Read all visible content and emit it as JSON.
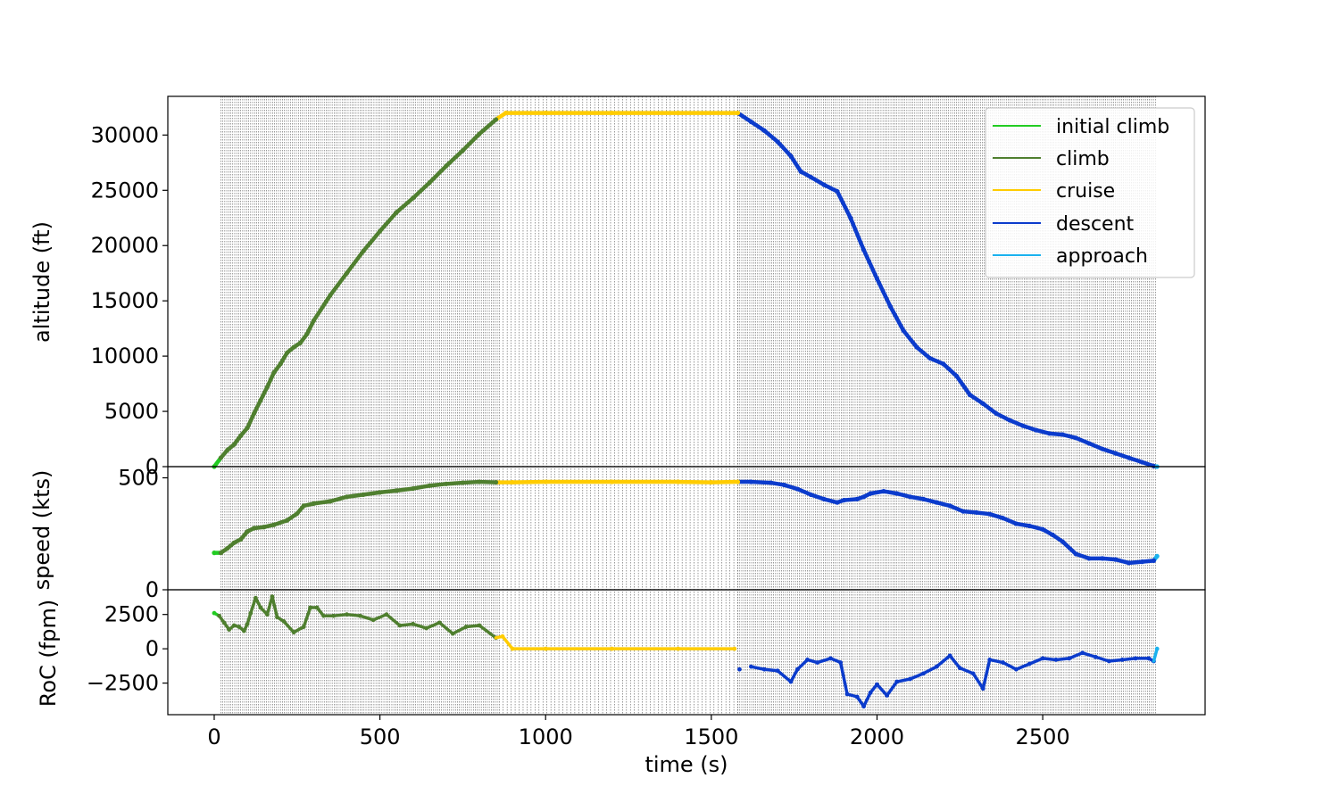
{
  "chart_data": {
    "type": "line",
    "xlabel": "time (s)",
    "xlim": [
      -140,
      2990
    ],
    "xticks": [
      0,
      500,
      1000,
      1500,
      2000,
      2500
    ],
    "legend": {
      "placement": "top-right",
      "entries": [
        {
          "name": "initial climb",
          "color": "#22cc22"
        },
        {
          "name": "climb",
          "color": "#4f7f2f"
        },
        {
          "name": "cruise",
          "color": "#ffcc00"
        },
        {
          "name": "descent",
          "color": "#0b3bcc"
        },
        {
          "name": "approach",
          "color": "#1ab2ee"
        }
      ]
    },
    "segments": [
      {
        "phase": "initial climb",
        "start": 0,
        "end": 12
      },
      {
        "phase": "climb",
        "start": 12,
        "end": 850
      },
      {
        "phase": "cruise",
        "start": 850,
        "end": 1580
      },
      {
        "phase": "descent",
        "start": 1580,
        "end": 2835
      },
      {
        "phase": "approach",
        "start": 2835,
        "end": 2845
      }
    ],
    "vlines": {
      "style": "dotted",
      "color": "#555555",
      "spans": [
        [
          20,
          860,
          6
        ],
        [
          860,
          1580,
          12
        ],
        [
          1580,
          2845,
          6
        ]
      ]
    },
    "panels": [
      {
        "name": "altitude",
        "ylabel": "altitude (ft)",
        "ylim": [
          0,
          33500
        ],
        "yticks": [
          0,
          5000,
          10000,
          15000,
          20000,
          25000,
          30000
        ],
        "style": "line",
        "points": [
          [
            0,
            0
          ],
          [
            20,
            800
          ],
          [
            40,
            1500
          ],
          [
            60,
            2000
          ],
          [
            80,
            2800
          ],
          [
            100,
            3500
          ],
          [
            120,
            4800
          ],
          [
            140,
            6000
          ],
          [
            160,
            7200
          ],
          [
            180,
            8500
          ],
          [
            200,
            9300
          ],
          [
            220,
            10300
          ],
          [
            240,
            10800
          ],
          [
            260,
            11200
          ],
          [
            280,
            12000
          ],
          [
            300,
            13200
          ],
          [
            350,
            15500
          ],
          [
            400,
            17500
          ],
          [
            450,
            19500
          ],
          [
            500,
            21300
          ],
          [
            550,
            23000
          ],
          [
            600,
            24300
          ],
          [
            650,
            25700
          ],
          [
            700,
            27200
          ],
          [
            750,
            28600
          ],
          [
            800,
            30100
          ],
          [
            850,
            31400
          ],
          [
            880,
            32000
          ],
          [
            1000,
            32000
          ],
          [
            1200,
            32000
          ],
          [
            1400,
            32000
          ],
          [
            1580,
            32000
          ],
          [
            1620,
            31200
          ],
          [
            1660,
            30400
          ],
          [
            1700,
            29400
          ],
          [
            1740,
            28100
          ],
          [
            1770,
            26700
          ],
          [
            1800,
            26200
          ],
          [
            1840,
            25500
          ],
          [
            1880,
            24900
          ],
          [
            1920,
            22500
          ],
          [
            1960,
            19600
          ],
          [
            2000,
            17000
          ],
          [
            2040,
            14500
          ],
          [
            2080,
            12300
          ],
          [
            2120,
            10800
          ],
          [
            2160,
            9800
          ],
          [
            2200,
            9300
          ],
          [
            2240,
            8200
          ],
          [
            2280,
            6500
          ],
          [
            2320,
            5700
          ],
          [
            2360,
            4800
          ],
          [
            2400,
            4200
          ],
          [
            2440,
            3700
          ],
          [
            2480,
            3300
          ],
          [
            2520,
            3000
          ],
          [
            2560,
            2900
          ],
          [
            2600,
            2600
          ],
          [
            2640,
            2100
          ],
          [
            2680,
            1600
          ],
          [
            2720,
            1200
          ],
          [
            2760,
            800
          ],
          [
            2800,
            400
          ],
          [
            2835,
            50
          ],
          [
            2845,
            0
          ]
        ]
      },
      {
        "name": "speed",
        "ylabel": "speed (kts)",
        "ylim": [
          0,
          550
        ],
        "yticks": [
          0,
          500
        ],
        "style": "line",
        "points": [
          [
            0,
            165
          ],
          [
            20,
            165
          ],
          [
            40,
            185
          ],
          [
            60,
            210
          ],
          [
            80,
            225
          ],
          [
            100,
            260
          ],
          [
            120,
            275
          ],
          [
            150,
            280
          ],
          [
            180,
            290
          ],
          [
            220,
            310
          ],
          [
            250,
            340
          ],
          [
            270,
            375
          ],
          [
            300,
            385
          ],
          [
            350,
            395
          ],
          [
            400,
            415
          ],
          [
            450,
            425
          ],
          [
            500,
            435
          ],
          [
            550,
            443
          ],
          [
            600,
            452
          ],
          [
            650,
            465
          ],
          [
            700,
            473
          ],
          [
            750,
            478
          ],
          [
            800,
            482
          ],
          [
            850,
            480
          ],
          [
            900,
            480
          ],
          [
            1000,
            482
          ],
          [
            1200,
            482
          ],
          [
            1400,
            482
          ],
          [
            1500,
            480
          ],
          [
            1580,
            482
          ],
          [
            1620,
            482
          ],
          [
            1680,
            478
          ],
          [
            1720,
            468
          ],
          [
            1760,
            450
          ],
          [
            1800,
            425
          ],
          [
            1840,
            405
          ],
          [
            1880,
            390
          ],
          [
            1900,
            400
          ],
          [
            1940,
            405
          ],
          [
            1960,
            415
          ],
          [
            1980,
            430
          ],
          [
            2020,
            440
          ],
          [
            2060,
            430
          ],
          [
            2100,
            415
          ],
          [
            2140,
            405
          ],
          [
            2180,
            390
          ],
          [
            2220,
            375
          ],
          [
            2260,
            350
          ],
          [
            2300,
            345
          ],
          [
            2340,
            338
          ],
          [
            2380,
            320
          ],
          [
            2420,
            295
          ],
          [
            2460,
            285
          ],
          [
            2500,
            270
          ],
          [
            2530,
            245
          ],
          [
            2560,
            215
          ],
          [
            2600,
            160
          ],
          [
            2640,
            140
          ],
          [
            2680,
            140
          ],
          [
            2720,
            135
          ],
          [
            2760,
            120
          ],
          [
            2800,
            125
          ],
          [
            2835,
            130
          ],
          [
            2845,
            150
          ]
        ]
      },
      {
        "name": "roc",
        "ylabel": "RoC (fpm)",
        "ylim": [
          -4800,
          4300
        ],
        "yticks": [
          -2500,
          0,
          2500
        ],
        "style": "dots",
        "points": [
          [
            0,
            2600
          ],
          [
            15,
            2400
          ],
          [
            30,
            1900
          ],
          [
            45,
            1400
          ],
          [
            60,
            1700
          ],
          [
            75,
            1600
          ],
          [
            90,
            1300
          ],
          [
            100,
            1800
          ],
          [
            110,
            2600
          ],
          [
            125,
            3700
          ],
          [
            140,
            3000
          ],
          [
            160,
            2500
          ],
          [
            175,
            3800
          ],
          [
            190,
            2300
          ],
          [
            210,
            2000
          ],
          [
            240,
            1200
          ],
          [
            270,
            1600
          ],
          [
            290,
            3000
          ],
          [
            310,
            3000
          ],
          [
            330,
            2400
          ],
          [
            360,
            2400
          ],
          [
            400,
            2500
          ],
          [
            440,
            2400
          ],
          [
            480,
            2100
          ],
          [
            520,
            2500
          ],
          [
            560,
            1700
          ],
          [
            600,
            1800
          ],
          [
            640,
            1500
          ],
          [
            680,
            1900
          ],
          [
            720,
            1100
          ],
          [
            760,
            1600
          ],
          [
            800,
            1700
          ],
          [
            850,
            800
          ],
          [
            870,
            900
          ],
          [
            900,
            0
          ],
          [
            1000,
            0
          ],
          [
            1200,
            0
          ],
          [
            1400,
            0
          ],
          [
            1570,
            0
          ],
          [
            1585,
            -1500
          ],
          [
            1620,
            -1300
          ],
          [
            1660,
            -1500
          ],
          [
            1700,
            -1600
          ],
          [
            1740,
            -2400
          ],
          [
            1760,
            -1500
          ],
          [
            1790,
            -800
          ],
          [
            1820,
            -1000
          ],
          [
            1860,
            -700
          ],
          [
            1890,
            -1000
          ],
          [
            1910,
            -3300
          ],
          [
            1940,
            -3500
          ],
          [
            1960,
            -4200
          ],
          [
            1980,
            -3200
          ],
          [
            2000,
            -2600
          ],
          [
            2030,
            -3400
          ],
          [
            2060,
            -2400
          ],
          [
            2100,
            -2200
          ],
          [
            2140,
            -1800
          ],
          [
            2180,
            -1300
          ],
          [
            2220,
            -500
          ],
          [
            2250,
            -1400
          ],
          [
            2290,
            -1800
          ],
          [
            2320,
            -2900
          ],
          [
            2340,
            -800
          ],
          [
            2380,
            -1000
          ],
          [
            2420,
            -1500
          ],
          [
            2460,
            -1100
          ],
          [
            2500,
            -700
          ],
          [
            2540,
            -800
          ],
          [
            2580,
            -700
          ],
          [
            2620,
            -300
          ],
          [
            2660,
            -600
          ],
          [
            2700,
            -900
          ],
          [
            2740,
            -800
          ],
          [
            2780,
            -700
          ],
          [
            2820,
            -700
          ],
          [
            2835,
            -900
          ],
          [
            2845,
            0
          ]
        ]
      }
    ]
  }
}
